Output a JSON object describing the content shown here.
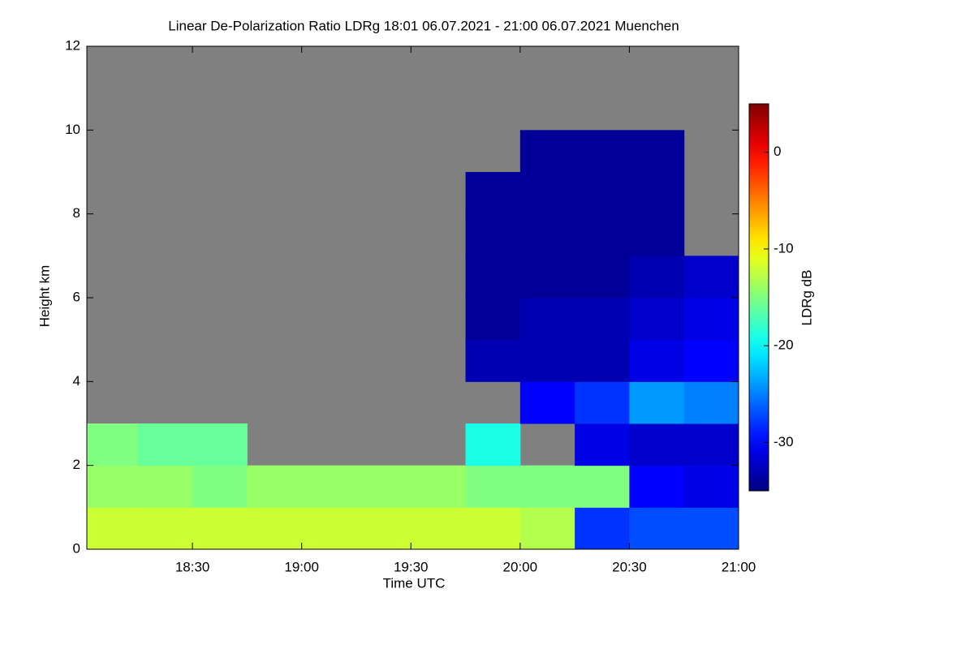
{
  "chart_data": {
    "type": "heatmap",
    "title": "Linear De-Polarization Ratio LDRg   18:01 06.07.2021 - 21:00 06.07.2021 Muenchen",
    "xlabel": "Time UTC",
    "ylabel": "Height km",
    "colorbar_label": "LDRg dB",
    "xlim": [
      18.0167,
      21.0
    ],
    "xticks": [
      {
        "value": 18.5,
        "label": "18:30"
      },
      {
        "value": 19.0,
        "label": "19:00"
      },
      {
        "value": 19.5,
        "label": "19:30"
      },
      {
        "value": 20.0,
        "label": "20:00"
      },
      {
        "value": 20.5,
        "label": "20:30"
      },
      {
        "value": 21.0,
        "label": "21:00"
      }
    ],
    "ylim": [
      0,
      12
    ],
    "yticks": [
      0,
      2,
      4,
      6,
      8,
      10,
      12
    ],
    "zlim": [
      -35,
      5
    ],
    "zticks": [
      0,
      -10,
      -20,
      -30
    ],
    "colormap": "jet",
    "missing_color": "#808080",
    "xbins": [
      18.0167,
      18.25,
      18.5,
      18.75,
      19.0,
      19.25,
      19.5,
      19.75,
      20.0,
      20.25,
      20.5,
      20.75,
      21.0
    ],
    "ybins": [
      0,
      1,
      2,
      3,
      4,
      5,
      6,
      7,
      8,
      9,
      10,
      11,
      12
    ],
    "z": [
      [
        -12,
        -12,
        -12,
        -12,
        -12,
        -12,
        -12,
        -12,
        -13,
        -28,
        -27,
        -27
      ],
      [
        -14,
        -14,
        -15,
        -14,
        -14,
        -14,
        -14,
        -15,
        -15,
        -15,
        -30,
        -31
      ],
      [
        -15,
        -16,
        -16,
        null,
        null,
        null,
        null,
        -19,
        null,
        -31,
        -32,
        -32
      ],
      [
        null,
        null,
        null,
        null,
        null,
        null,
        null,
        null,
        -30,
        -28,
        -24,
        -25
      ],
      [
        null,
        null,
        null,
        null,
        null,
        null,
        null,
        -33,
        -33,
        -33,
        -31,
        -30
      ],
      [
        null,
        null,
        null,
        null,
        null,
        null,
        null,
        -34,
        -33,
        -33,
        -32,
        -31
      ],
      [
        null,
        null,
        null,
        null,
        null,
        null,
        null,
        -34,
        -34,
        -34,
        -33,
        -32
      ],
      [
        null,
        null,
        null,
        null,
        null,
        null,
        null,
        -34,
        -34,
        -34,
        -34,
        null
      ],
      [
        null,
        null,
        null,
        null,
        null,
        null,
        null,
        -34,
        -34,
        -34,
        -34,
        null
      ],
      [
        null,
        null,
        null,
        null,
        null,
        null,
        null,
        null,
        -34,
        -34,
        -34,
        null
      ],
      [
        null,
        null,
        null,
        null,
        null,
        null,
        null,
        null,
        null,
        null,
        null,
        null
      ],
      [
        null,
        null,
        null,
        null,
        null,
        null,
        null,
        null,
        null,
        null,
        null,
        null
      ]
    ]
  }
}
